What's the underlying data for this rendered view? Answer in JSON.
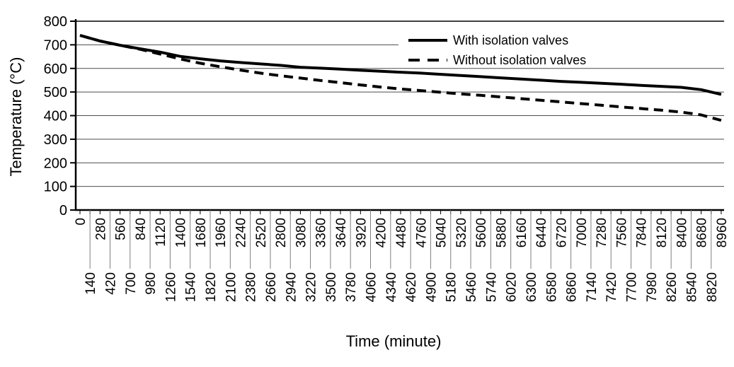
{
  "chart_data": {
    "type": "line",
    "title": "",
    "xlabel": "Time (minute)",
    "ylabel": "Temperature (°C)",
    "grid": "horizontal",
    "legend_position": "top-right",
    "ylim": [
      0,
      800
    ],
    "y_ticks": [
      0,
      100,
      200,
      300,
      400,
      500,
      600,
      700,
      800
    ],
    "x_ticks": [
      0,
      140,
      280,
      420,
      560,
      700,
      840,
      980,
      1120,
      1260,
      1400,
      1540,
      1680,
      1820,
      1960,
      2100,
      2240,
      2380,
      2520,
      2660,
      2800,
      2940,
      3080,
      3220,
      3360,
      3500,
      3640,
      3780,
      3920,
      4060,
      4200,
      4340,
      4480,
      4620,
      4760,
      4900,
      5040,
      5180,
      5320,
      5460,
      5600,
      5740,
      5880,
      6020,
      6160,
      6300,
      6440,
      6580,
      6720,
      6860,
      7000,
      7140,
      7280,
      7420,
      7560,
      7700,
      7840,
      7980,
      8120,
      8260,
      8400,
      8540,
      8680,
      8820,
      8960
    ],
    "x": [
      0,
      280,
      560,
      840,
      1120,
      1400,
      1680,
      1960,
      2240,
      2520,
      2800,
      3080,
      3360,
      3640,
      3920,
      4200,
      4480,
      4760,
      5040,
      5320,
      5600,
      5880,
      6160,
      6440,
      6720,
      7000,
      7280,
      7560,
      7840,
      8120,
      8400,
      8680,
      8960
    ],
    "series": [
      {
        "name": "With isolation valves",
        "style": "solid",
        "values": [
          740,
          716,
          698,
          683,
          669,
          651,
          641,
          632,
          625,
          619,
          613,
          605,
          601,
          597,
          592,
          588,
          584,
          580,
          575,
          570,
          565,
          560,
          555,
          550,
          545,
          541,
          537,
          533,
          528,
          524,
          520,
          510,
          490
        ]
      },
      {
        "name": "Without isolation valves",
        "style": "dashed",
        "values": [
          740,
          716,
          698,
          681,
          661,
          640,
          622,
          607,
          593,
          580,
          569,
          559,
          549,
          540,
          530,
          521,
          513,
          506,
          499,
          492,
          486,
          479,
          472,
          465,
          458,
          451,
          444,
          437,
          430,
          423,
          415,
          403,
          380
        ]
      }
    ]
  },
  "colors": {
    "line": "#000000",
    "gridline": "#4d4d4d",
    "top_gridline": "#000000",
    "leader_line": "#7f7f7f",
    "background": "#ffffff",
    "text": "#000000"
  }
}
